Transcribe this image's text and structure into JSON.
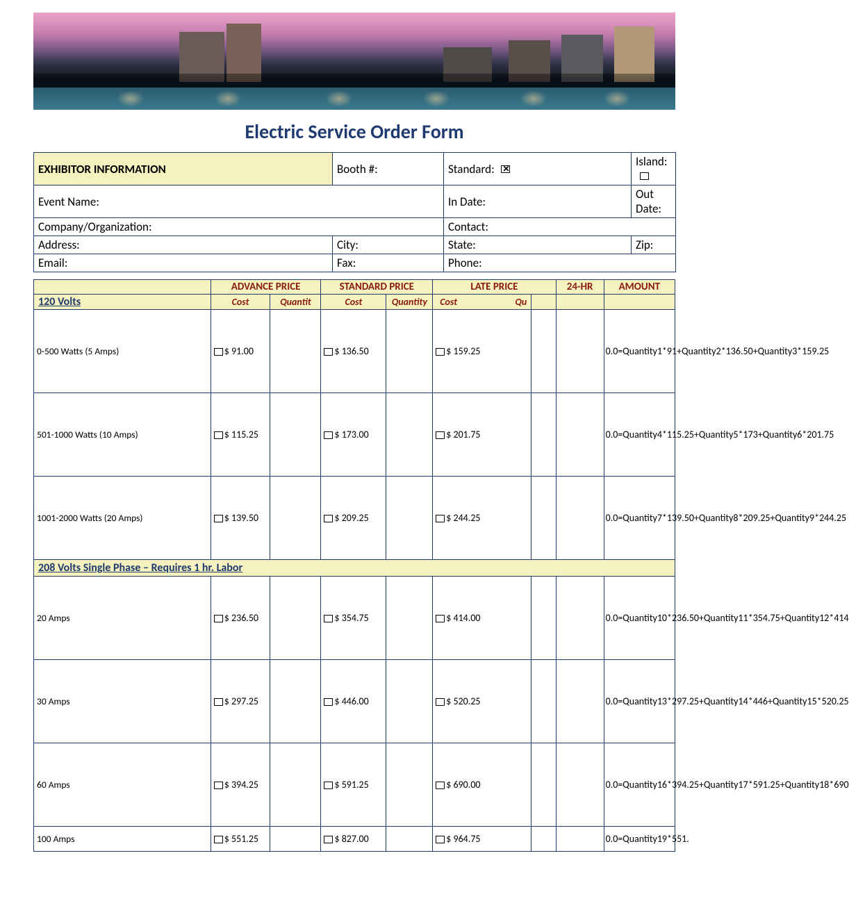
{
  "title": "Electric Service Order Form",
  "colors": {
    "border": "#1f3a6e",
    "header_bg": "#f6f2bf",
    "header_text": "#8a1a10",
    "label_text": "#1f3a6e"
  },
  "info": {
    "section_label": "EXHIBITOR INFORMATION",
    "booth": "Booth #:",
    "standard": "Standard:",
    "standard_checked": true,
    "island": "Island:",
    "island_checked": false,
    "event": "Event Name:",
    "in_date": "In Date:",
    "out_date": "Out Date:",
    "company": "Company/Organization:",
    "contact": "Contact:",
    "address": "Address:",
    "city": "City:",
    "state": "State:",
    "zip": "Zip:",
    "email": "Email:",
    "fax": "Fax:",
    "phone": "Phone:"
  },
  "pricing_headers": {
    "advance": "ADVANCE PRICE",
    "standard": "STANDARD PRICE",
    "late": "LATE PRICE",
    "hr24": "24-HR",
    "amount": "AMOUNT",
    "cost": "Cost",
    "quantity": "Quantity",
    "quantit": "Quantit",
    "qu": "Qu"
  },
  "section_120": "120 Volts",
  "section_208": "208 Volts Single Phase – Requires 1 hr. Labor",
  "rows120": [
    {
      "desc": "0-500 Watts (5 Amps)",
      "adv": "$   91.00",
      "std": "$  136.50",
      "late": "$ 159.25",
      "amount": "0.0=Quantity1*91+Quantity2*136.50+Quantity3*159.25"
    },
    {
      "desc": "501-1000 Watts (10 Amps)",
      "adv": "$ 115.25",
      "std": "$  173.00",
      "late": "$ 201.75",
      "amount": "0.0=Quantity4*115.25+Quantity5*173+Quantity6*201.75"
    },
    {
      "desc": "1001-2000 Watts (20 Amps)",
      "adv": "$ 139.50",
      "std": "$  209.25",
      "late": "$ 244.25",
      "amount": "0.0=Quantity7*139.50+Quantity8*209.25+Quantity9*244.25"
    }
  ],
  "rows208": [
    {
      "desc": "20 Amps",
      "adv": "$ 236.50",
      "std": "$  354.75",
      "late": "$  414.00",
      "amount": "0.0=Quantity10*236.50+Quantity11*354.75+Quantity12*414"
    },
    {
      "desc": "30 Amps",
      "adv": "$ 297.25",
      "std": "$  446.00",
      "late": "$  520.25",
      "amount": "0.0=Quantity13*297.25+Quantity14*446+Quantity15*520.25"
    },
    {
      "desc": "60 Amps",
      "adv": "$ 394.25",
      "std": "$  591.25",
      "late": "$  690.00",
      "amount": "0.0=Quantity16*394.25+Quantity17*591.25+Quantity18*690"
    },
    {
      "desc": "100 Amps",
      "adv": "$ 551.25",
      "std": "$  827.00",
      "late": "$  964.75",
      "amount": "0.0=Quantity19*551.",
      "short": true
    }
  ]
}
